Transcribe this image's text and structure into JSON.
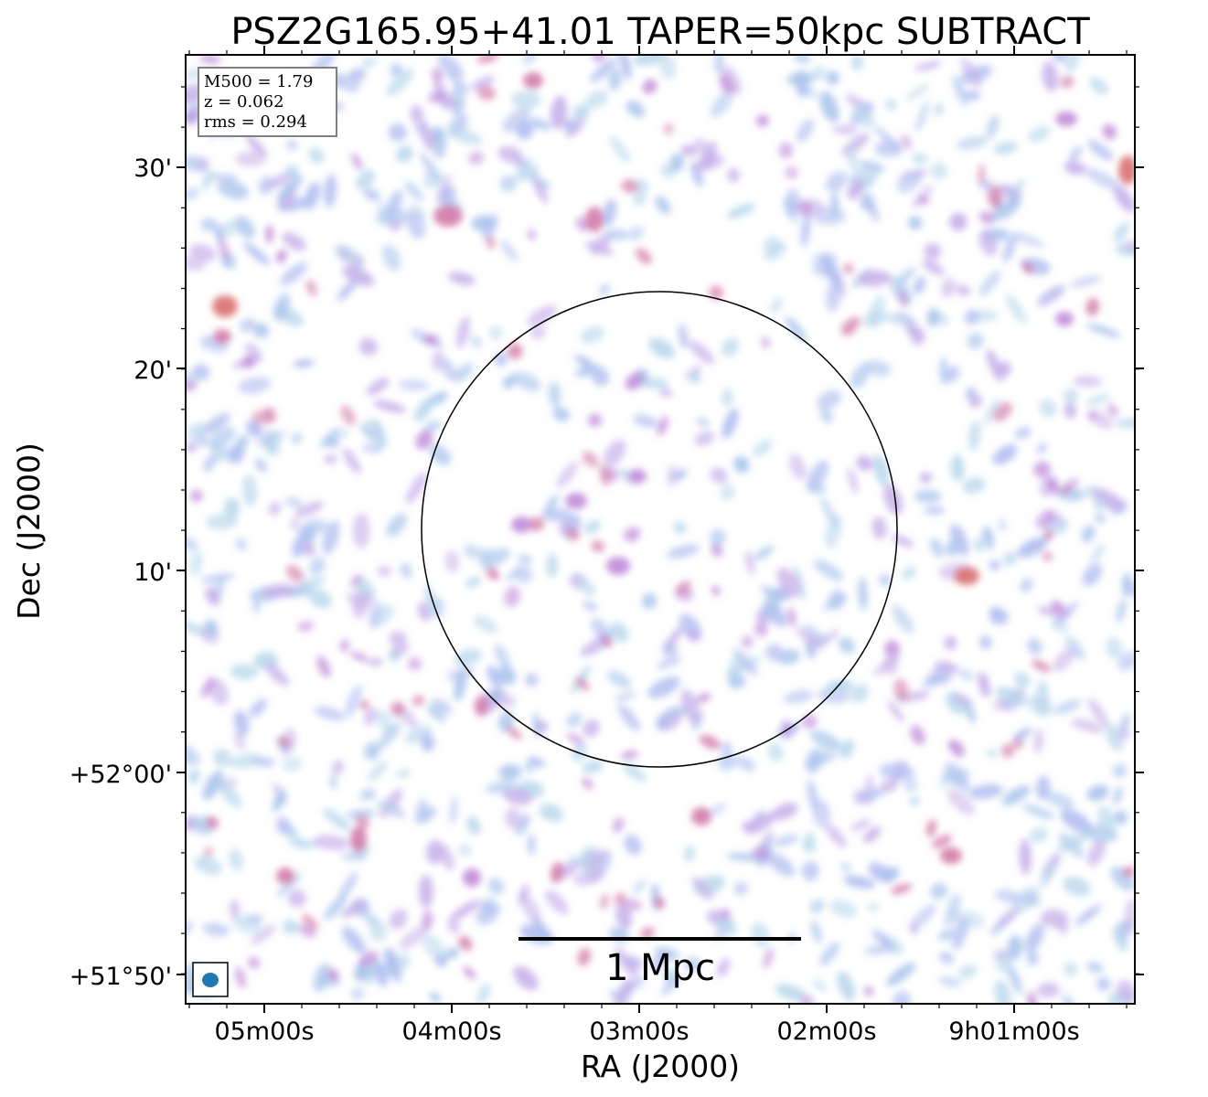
{
  "figure": {
    "title": "PSZ2G165.95+41.01 TAPER=50kpc SUBTRACT",
    "xlabel": "RA (J2000)",
    "ylabel": "Dec (J2000)"
  },
  "axes": {
    "x_ticks": [
      "05m00s",
      "04m00s",
      "03m00s",
      "02m00s",
      "9h01m00s"
    ],
    "y_ticks": [
      "30'",
      "20'",
      "10'",
      "+52°00'",
      "+51°50'"
    ]
  },
  "info_box": {
    "line1": "M500 = 1.79",
    "line2": "z = 0.062",
    "line3": "rms = 0.294"
  },
  "scale_bar": {
    "label": "1 Mpc"
  },
  "colors": {
    "beam": "#1f77b4",
    "noise_light": "#b9d7ec",
    "noise_mid": "#a9b7ea",
    "noise_purple": "#c08ad8",
    "noise_pink": "#d27aa8",
    "noise_red": "#d9706f"
  }
}
